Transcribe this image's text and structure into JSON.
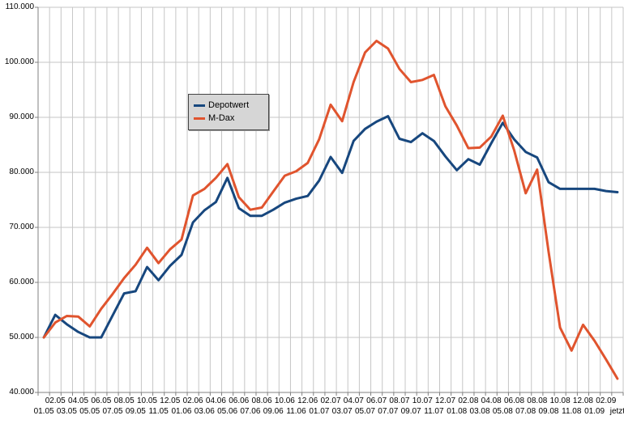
{
  "chart_data": {
    "type": "line",
    "title": "",
    "xlabel": "",
    "ylabel": "",
    "ylim": [
      40000,
      110000
    ],
    "ytick_step": 10000,
    "ytick_labels": [
      "40.000",
      "50.000",
      "60.000",
      "70.000",
      "80.000",
      "90.000",
      "100.000",
      "110.000"
    ],
    "grid": true,
    "legend_position": "inside-left-upper",
    "categories": [
      "01.05",
      "02.05",
      "03.05",
      "04.05",
      "05.05",
      "06.05",
      "07.05",
      "08.05",
      "09.05",
      "10.05",
      "11.05",
      "12.05",
      "01.06",
      "02.06",
      "03.06",
      "04.06",
      "05.06",
      "06.06",
      "07.06",
      "08.06",
      "09.06",
      "10.06",
      "11.06",
      "12.06",
      "01.07",
      "02.07",
      "03.07",
      "04.07",
      "05.07",
      "06.07",
      "07.07",
      "08.07",
      "09.07",
      "10.07",
      "11.07",
      "12.07",
      "01.08",
      "02.08",
      "03.08",
      "04.08",
      "05.08",
      "06.08",
      "07.08",
      "08.08",
      "09.08",
      "10.08",
      "11.08",
      "12.08",
      "01.09",
      "02.09",
      "jetzt"
    ],
    "series": [
      {
        "name": "Depotwert",
        "color": "#17477e",
        "values": [
          50000,
          54100,
          52400,
          51000,
          50000,
          50000,
          54000,
          58000,
          58400,
          62800,
          60400,
          63000,
          65000,
          70900,
          73100,
          74600,
          79000,
          73500,
          72100,
          72100,
          73200,
          74500,
          75200,
          75700,
          78500,
          82800,
          79900,
          85700,
          87900,
          89200,
          90200,
          86100,
          85500,
          87100,
          85700,
          82900,
          80400,
          82400,
          81400,
          85300,
          89000,
          86000,
          83700,
          82700,
          78200,
          77000,
          77000,
          77000,
          77000,
          76600,
          76400
        ]
      },
      {
        "name": "M-Dax",
        "color": "#e0542e",
        "values": [
          50000,
          52700,
          53900,
          53800,
          52000,
          55200,
          57900,
          60800,
          63200,
          66300,
          63500,
          66000,
          67800,
          75800,
          77000,
          79000,
          81500,
          75500,
          73200,
          73600,
          76500,
          79400,
          80200,
          81700,
          86000,
          92300,
          89300,
          96400,
          101800,
          103900,
          102500,
          98800,
          96400,
          96800,
          97700,
          92000,
          88500,
          84400,
          84500,
          86500,
          90300,
          84000,
          76200,
          80500,
          65500,
          51800,
          47600,
          52300,
          49400,
          46000,
          42500
        ]
      }
    ],
    "colors": {
      "gridline": "#c6c6c6",
      "axis": "#808080",
      "background": "#ffffff",
      "legend_fill": "#d6d6d6",
      "legend_border": "#444444",
      "text": "#000000"
    }
  }
}
